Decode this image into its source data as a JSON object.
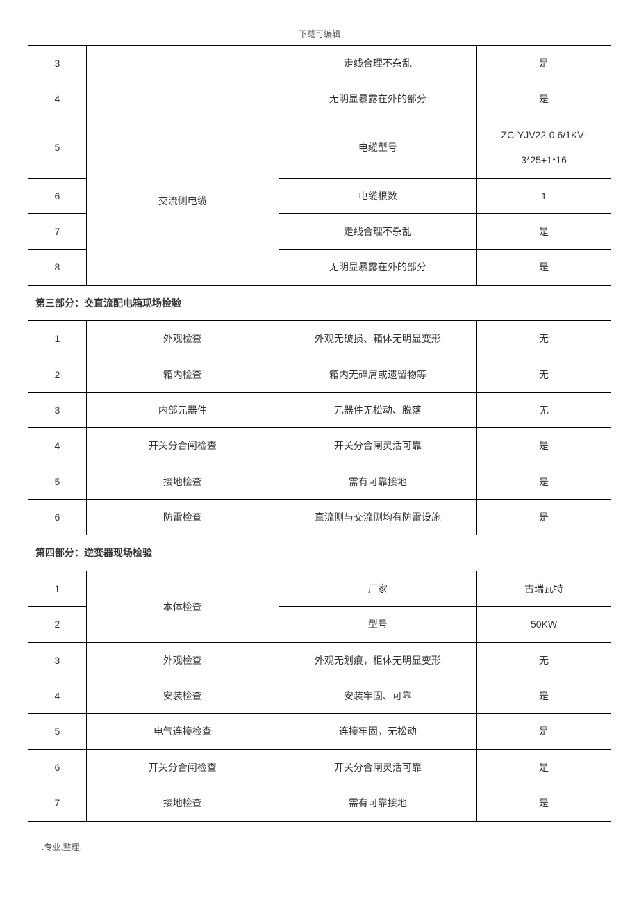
{
  "header_note": "下载可编辑",
  "footer_note": ".专业.整理.",
  "table": {
    "col_widths_pct": [
      10,
      33,
      34,
      23
    ],
    "border_color": "#000000",
    "text_color": "#333333",
    "font_size_pt": 10.5,
    "background_color": "#ffffff"
  },
  "pre_rows": [
    {
      "num": "3",
      "category": "",
      "item": "走线合理不杂乱",
      "result": "是"
    },
    {
      "num": "4",
      "category": "",
      "item": "无明显暴露在外的部分",
      "result": "是"
    }
  ],
  "ac_cable": {
    "label": "交流侧电缆",
    "rows": [
      {
        "num": "5",
        "item": "电缆型号",
        "result_line1": "ZC-YJV22-0.6/1KV-",
        "result_line2": "3*25+1*16"
      },
      {
        "num": "6",
        "item": "电缆根数",
        "result": "1"
      },
      {
        "num": "7",
        "item": "走线合理不杂乱",
        "result": "是"
      },
      {
        "num": "8",
        "item": "无明显暴露在外的部分",
        "result": "是"
      }
    ]
  },
  "section3": {
    "title": "第三部分：交直流配电箱现场检验",
    "rows": [
      {
        "num": "1",
        "category": "外观检查",
        "item": "外观无破损、箱体无明显变形",
        "result": "无"
      },
      {
        "num": "2",
        "category": "箱内检查",
        "item": "箱内无碎屑或遗留物等",
        "result": "无"
      },
      {
        "num": "3",
        "category": "内部元器件",
        "item": "元器件无松动、脱落",
        "result": "无"
      },
      {
        "num": "4",
        "category": "开关分合闸检查",
        "item": "开关分合闸灵活可靠",
        "result": "是"
      },
      {
        "num": "5",
        "category": "接地检查",
        "item": "需有可靠接地",
        "result": "是"
      },
      {
        "num": "6",
        "category": "防雷检查",
        "item": "直流侧与交流侧均有防雷设施",
        "result": "是"
      }
    ]
  },
  "section4": {
    "title": "第四部分：逆变器现场检验",
    "body_check_label": "本体检查",
    "rows_merged": [
      {
        "num": "1",
        "item": "厂家",
        "result": "古瑞瓦特"
      },
      {
        "num": "2",
        "item": "型号",
        "result": "50KW"
      }
    ],
    "rows": [
      {
        "num": "3",
        "category": "外观检查",
        "item": "外观无划痕，柜体无明显变形",
        "result": "无"
      },
      {
        "num": "4",
        "category": "安装检查",
        "item": "安装牢固、可靠",
        "result": "是"
      },
      {
        "num": "5",
        "category": "电气连接检查",
        "item": "连接牢固，无松动",
        "result": "是"
      },
      {
        "num": "6",
        "category": "开关分合闸检查",
        "item": "开关分合闸灵活可靠",
        "result": "是"
      },
      {
        "num": "7",
        "category": "接地检查",
        "item": "需有可靠接地",
        "result": "是"
      }
    ]
  }
}
